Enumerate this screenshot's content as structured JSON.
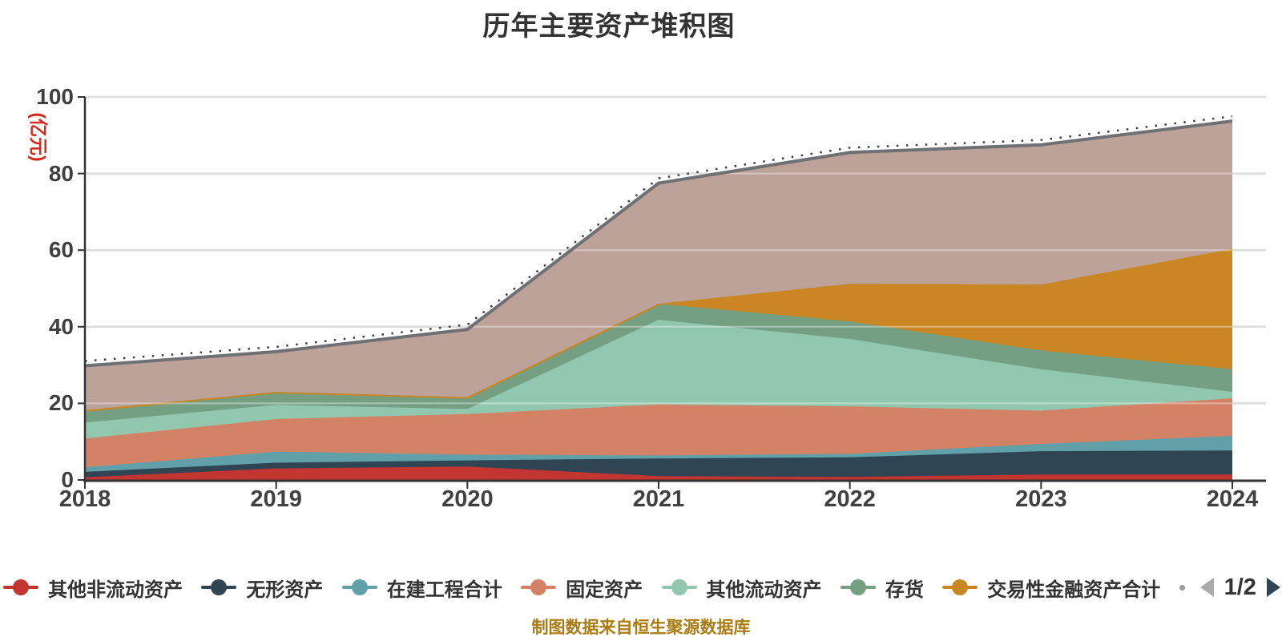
{
  "title": "历年主要资产堆积图",
  "y_axis": {
    "name": "(亿元)",
    "name_color": "#d5291d",
    "ticks": [
      0,
      20,
      40,
      60,
      80,
      100
    ],
    "max": 100
  },
  "x_axis": {
    "years": [
      "2018",
      "2019",
      "2020",
      "2021",
      "2022",
      "2023",
      "2024"
    ]
  },
  "legend": {
    "items": [
      {
        "label": "其他非流动资产",
        "color": "#c23531"
      },
      {
        "label": "无形资产",
        "color": "#2f4554"
      },
      {
        "label": "在建工程合计",
        "color": "#61a0a8"
      },
      {
        "label": "固定资产",
        "color": "#d48265"
      },
      {
        "label": "其他流动资产",
        "color": "#91c7ae"
      },
      {
        "label": "存货",
        "color": "#749f83"
      },
      {
        "label": "交易性金融资产合计",
        "color": "#ca8622"
      }
    ],
    "pager": {
      "current": "1/2",
      "prev_color": "#aaaaaa",
      "next_color": "#2f4554"
    }
  },
  "footer": {
    "text": "制图数据来自恒生聚源数据库",
    "color": "#aa7b10"
  },
  "chart_data": {
    "type": "area",
    "stacked": true,
    "title": "历年主要资产堆积图",
    "ylabel": "(亿元)",
    "ylim": [
      0,
      100
    ],
    "grid": true,
    "legend_position": "bottom",
    "categories": [
      2018,
      2019,
      2020,
      2021,
      2022,
      2023,
      2024
    ],
    "series": [
      {
        "name": "其他非流动资产",
        "color": "#c23531",
        "in_visible_legend": true,
        "values": [
          0.5,
          2.8,
          3.3,
          0.8,
          0.6,
          1.2,
          1.2
        ]
      },
      {
        "name": "无形资产",
        "color": "#2f4554",
        "in_visible_legend": true,
        "values": [
          1.4,
          1.5,
          1.6,
          4.6,
          5.1,
          6.1,
          6.3
        ]
      },
      {
        "name": "在建工程合计",
        "color": "#61a0a8",
        "in_visible_legend": true,
        "values": [
          1.2,
          2.9,
          1.5,
          0.8,
          0.9,
          1.9,
          3.8
        ]
      },
      {
        "name": "固定资产",
        "color": "#d48265",
        "in_visible_legend": true,
        "values": [
          7.5,
          8.5,
          10.6,
          13.3,
          12.4,
          8.7,
          9.8
        ]
      },
      {
        "name": "其他流动资产",
        "color": "#91c7ae",
        "in_visible_legend": true,
        "values": [
          4.2,
          3.7,
          1.3,
          22.1,
          17.6,
          10.8,
          1.7
        ]
      },
      {
        "name": "存货",
        "color": "#749f83",
        "in_visible_legend": true,
        "values": [
          3.2,
          3.4,
          3.1,
          4.2,
          4.6,
          4.9,
          5.9
        ]
      },
      {
        "name": "交易性金融资产合计",
        "color": "#ca8622",
        "in_visible_legend": true,
        "values": [
          0.0,
          0.0,
          0.0,
          0.0,
          9.8,
          17.2,
          31.4
        ]
      },
      {
        "name": "",
        "color": "#bda29a",
        "in_visible_legend": false,
        "values": [
          11.8,
          10.7,
          17.9,
          31.7,
          34.5,
          36.7,
          33.6
        ]
      }
    ],
    "stack_totals": [
      29.8,
      33.5,
      39.3,
      77.5,
      85.5,
      87.5,
      93.7
    ],
    "top_edge": {
      "line_color": "#6e7074",
      "dotted_marks_color": "#3c3c3c"
    },
    "gridline_color": "#cccccc",
    "axis_color": "#333333"
  }
}
